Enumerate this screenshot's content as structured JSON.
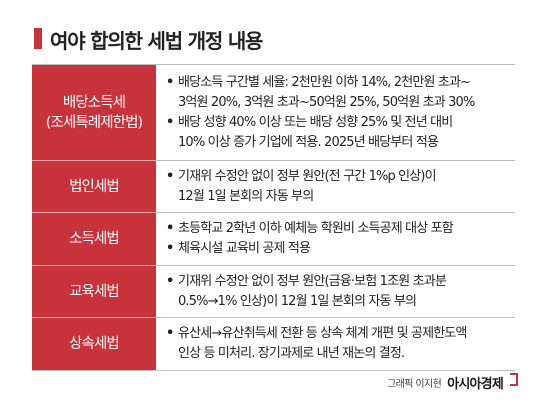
{
  "title": "여야 합의한 세법 개정 내용",
  "colors": {
    "accent": "#c8333b",
    "divider": "#bdbdbd"
  },
  "rows": [
    {
      "label": [
        "배당소득세",
        "(조세특례제한법)"
      ],
      "items": [
        [
          "배당소득 구간별 세율: 2천만원 이하 14%, 2천만원 초과~",
          "3억원 20%, 3억원 초과~50억원 25%, 50억원 초과 30%"
        ],
        [
          "배당 성향 40% 이상 또는 배당 성향 25% 및 전년 대비",
          "10% 이상 증가 기업에 적용. 2025년 배당부터 적용"
        ]
      ]
    },
    {
      "label": [
        "법인세법"
      ],
      "items": [
        [
          "기재위 수정안 없이 정부 원안(전 구간 1%p 인상)이",
          "12월 1일 본회의 자동 부의"
        ]
      ]
    },
    {
      "label": [
        "소득세법"
      ],
      "items": [
        [
          "초등학교 2학년 이하 예체능 학원비 소득공제 대상 포함"
        ],
        [
          "체육시설 교육비 공제 적용"
        ]
      ]
    },
    {
      "label": [
        "교육세법"
      ],
      "items": [
        [
          "기재위 수정안 없이 정부 원안(금융·보험 1조원 초과분",
          "0.5%→1% 인상)이 12월 1일 본회의 자동 부의"
        ]
      ]
    },
    {
      "label": [
        "상속세법"
      ],
      "items": [
        [
          "유산세→유산취득세 전환 등 상속 체계 개편 및 공제한도액",
          "인상 등 미처리. 장기과제로 내년 재논의 결정."
        ]
      ]
    }
  ],
  "bullet_symbol": "•",
  "credit": "그래픽 이지현",
  "logo": "아시아경제"
}
